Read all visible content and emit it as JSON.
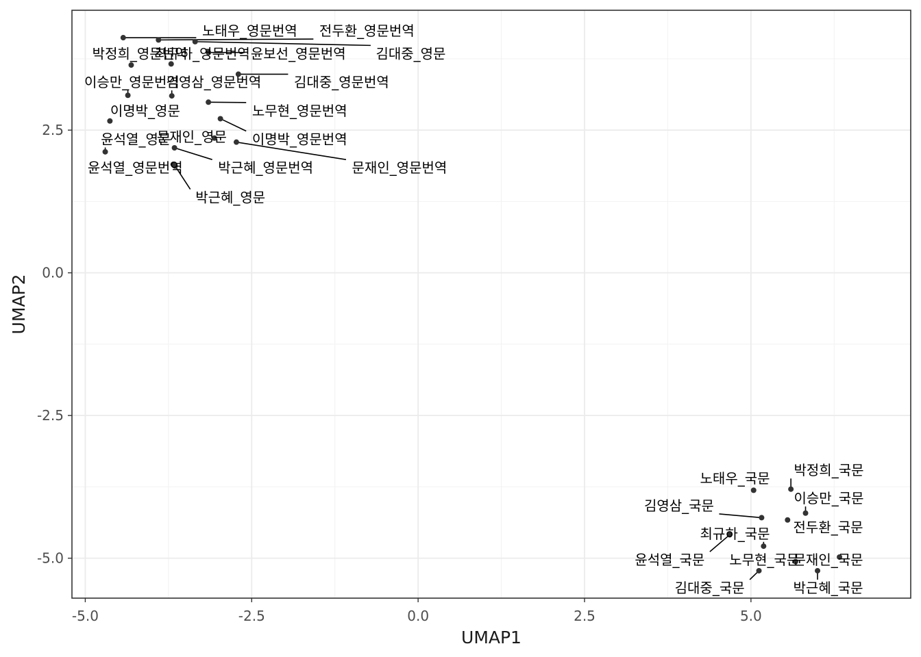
{
  "chart_data": {
    "type": "scatter",
    "title": "",
    "xlabel": "UMAP1",
    "ylabel": "UMAP2",
    "xlim": [
      -5.2,
      7.4
    ],
    "ylim": [
      -5.7,
      4.6
    ],
    "xticks": [
      -5.0,
      -2.5,
      0.0,
      2.5,
      5.0
    ],
    "yticks": [
      -5.0,
      -2.5,
      0.0,
      2.5
    ],
    "xtick_labels": [
      "-5.0",
      "-2.5",
      "0.0",
      "2.5",
      "5.0"
    ],
    "ytick_labels": [
      "-5.0",
      "-2.5",
      "0.0",
      "2.5"
    ],
    "grid": true,
    "point_color": "#333333",
    "points": [
      {
        "label": "노태우_영문번역",
        "x": -4.43,
        "y": 4.12,
        "lx": -2.53,
        "ly": 4.24
      },
      {
        "label": "전두환_영문번역",
        "x": -3.9,
        "y": 4.08,
        "lx": -0.77,
        "ly": 4.24
      },
      {
        "label": "박정희_영문번역",
        "x": -4.31,
        "y": 3.64,
        "lx": -4.18,
        "ly": 3.84
      },
      {
        "label": "최규하_영문번역",
        "x": -3.71,
        "y": 3.66,
        "lx": -3.24,
        "ly": 3.84
      },
      {
        "label": "윤보선_영문번역",
        "x": -3.15,
        "y": 3.86,
        "lx": -1.8,
        "ly": 3.84
      },
      {
        "label": "김대중_영문",
        "x": -3.35,
        "y": 4.05,
        "lx": -0.11,
        "ly": 3.84
      },
      {
        "label": "이승만_영문번역",
        "x": -4.36,
        "y": 3.11,
        "lx": -4.3,
        "ly": 3.34
      },
      {
        "label": "김영삼_영문번역",
        "x": -3.7,
        "y": 3.1,
        "lx": -3.07,
        "ly": 3.34
      },
      {
        "label": "김대중_영문번역",
        "x": -2.7,
        "y": 3.48,
        "lx": -1.15,
        "ly": 3.34
      },
      {
        "label": "이명박_영문",
        "x": -4.63,
        "y": 2.66,
        "lx": -4.1,
        "ly": 2.84
      },
      {
        "label": "노무현_영문번역",
        "x": -3.15,
        "y": 2.99,
        "lx": -1.78,
        "ly": 2.84
      },
      {
        "label": "문재인_영문",
        "x": -3.06,
        "y": 2.36,
        "lx": -3.4,
        "ly": 2.38
      },
      {
        "label": "이명박_영문번역",
        "x": -2.97,
        "y": 2.7,
        "lx": -1.78,
        "ly": 2.34
      },
      {
        "label": "윤석열_영문",
        "x": -4.7,
        "y": 2.12,
        "lx": -4.24,
        "ly": 2.34
      },
      {
        "label": "박근혜_영문번역",
        "x": -3.66,
        "y": 2.19,
        "lx": -2.29,
        "ly": 1.84
      },
      {
        "label": "문재인_영문번역",
        "x": -2.73,
        "y": 2.29,
        "lx": -0.28,
        "ly": 1.84
      },
      {
        "label": "윤석열_영문번역",
        "x": -3.68,
        "y": 1.9,
        "lx": -4.25,
        "ly": 1.84
      },
      {
        "label": "박근혜_영문",
        "x": -3.65,
        "y": 1.87,
        "lx": -2.82,
        "ly": 1.32
      },
      {
        "label": "노태우_국문",
        "x": 5.04,
        "y": -3.81,
        "lx": 4.76,
        "ly": -3.6
      },
      {
        "label": "박정희_국문",
        "x": 5.6,
        "y": -3.79,
        "lx": 6.17,
        "ly": -3.46
      },
      {
        "label": "이승만_국문",
        "x": 5.82,
        "y": -4.21,
        "lx": 6.17,
        "ly": -3.95
      },
      {
        "label": "김영삼_국문",
        "x": 5.16,
        "y": -4.29,
        "lx": 3.92,
        "ly": -4.08
      },
      {
        "label": "전두환_국문",
        "x": 5.55,
        "y": -4.33,
        "lx": 6.16,
        "ly": -4.46
      },
      {
        "label": "최규하_국문",
        "x": 5.19,
        "y": -4.79,
        "lx": 4.76,
        "ly": -4.57
      },
      {
        "label": "윤석열_국문",
        "x": 4.68,
        "y": -4.59,
        "lx": 3.78,
        "ly": -5.03
      },
      {
        "label": "노무현_국문",
        "x": 5.67,
        "y": -5.06,
        "lx": 5.2,
        "ly": -5.03
      },
      {
        "label": "문재인_국문",
        "x": 6.33,
        "y": -4.98,
        "lx": 6.16,
        "ly": -5.03
      },
      {
        "label": "김대중_국문",
        "x": 5.12,
        "y": -5.22,
        "lx": 4.38,
        "ly": -5.52
      },
      {
        "label": "박근혜_국문",
        "x": 6.0,
        "y": -5.22,
        "lx": 6.16,
        "ly": -5.52
      }
    ]
  }
}
